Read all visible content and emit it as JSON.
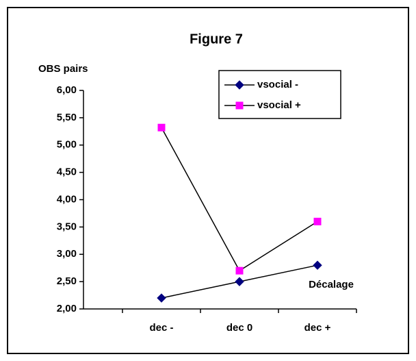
{
  "chart_data": {
    "type": "line",
    "title": "Figure 7",
    "y_label": "OBS pairs",
    "x_label": "Décalage",
    "categories": [
      "dec -",
      "dec 0",
      "dec +"
    ],
    "series": [
      {
        "name": "vsocial -",
        "color": "#000080",
        "marker": "diamond",
        "values": [
          2.2,
          2.5,
          2.8
        ]
      },
      {
        "name": "vsocial +",
        "color": "#ff00ff",
        "marker": "square",
        "values": [
          5.32,
          2.7,
          3.6
        ]
      }
    ],
    "ylim": [
      2,
      6
    ],
    "yticks": [
      {
        "value": 2,
        "label": "2,00"
      },
      {
        "value": 2.5,
        "label": "2,50"
      },
      {
        "value": 3,
        "label": "3,00"
      },
      {
        "value": 3.5,
        "label": "3,50"
      },
      {
        "value": 4,
        "label": "4,00"
      },
      {
        "value": 4.5,
        "label": "4,50"
      },
      {
        "value": 5,
        "label": "5,00"
      },
      {
        "value": 5.5,
        "label": "5,50"
      },
      {
        "value": 6,
        "label": "6,00"
      }
    ],
    "legend": "top-right"
  }
}
